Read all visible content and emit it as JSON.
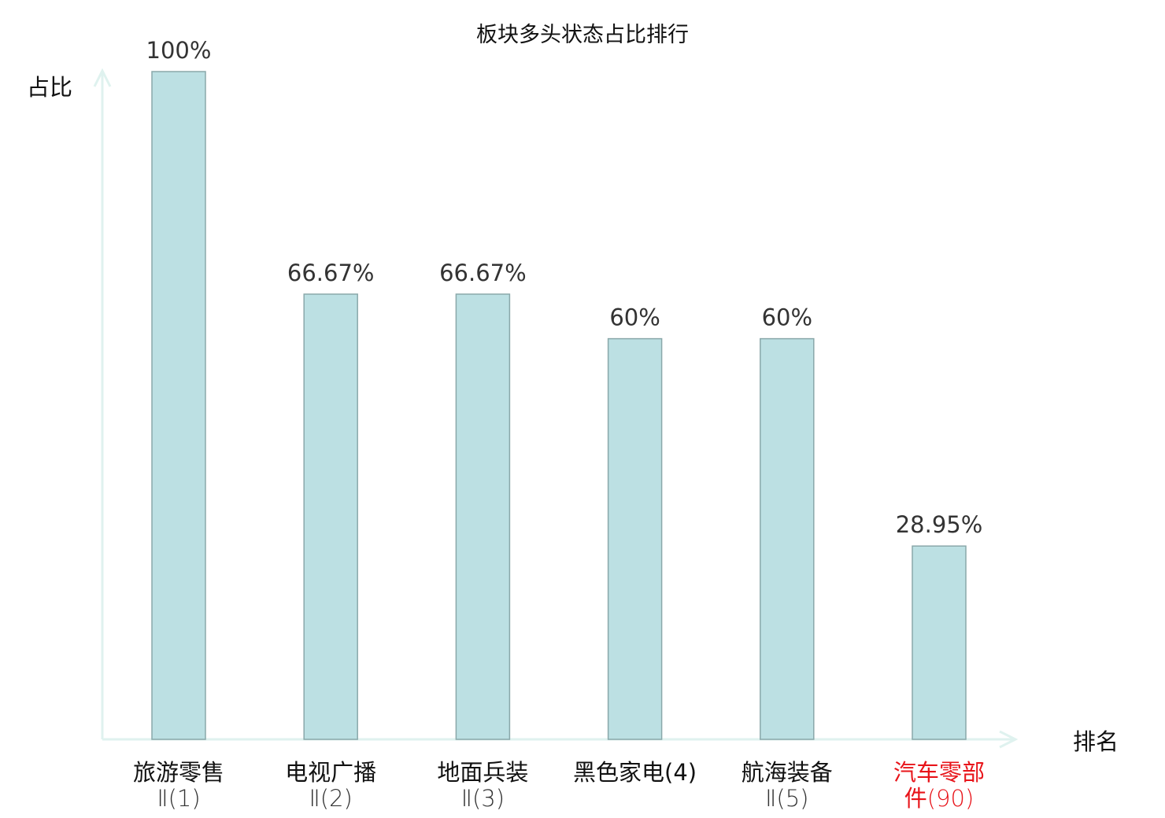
{
  "chart_data": {
    "type": "bar",
    "title": "板块多头状态占比排行",
    "xlabel": "排名",
    "ylabel": "占比",
    "ylim": [
      0,
      100
    ],
    "grid": false,
    "categories": [
      "旅游零售Ⅱ(1)",
      "电视广播Ⅱ(2)",
      "地面兵装Ⅱ(3)",
      "黑色家电(4)",
      "航海装备Ⅱ(5)",
      "汽车零部件(90)"
    ],
    "values": [
      100,
      66.67,
      66.67,
      60,
      60,
      28.95
    ],
    "data_labels": [
      "100%",
      "66.67%",
      "66.67%",
      "60%",
      "60%",
      "28.95%"
    ],
    "highlight_index": 5,
    "colors": {
      "bar": "#bce0e3",
      "bar_edge": "#8aa8aa",
      "axis": "#dff2ef",
      "highlight_text": "#e8141a",
      "text": "#333333"
    }
  }
}
